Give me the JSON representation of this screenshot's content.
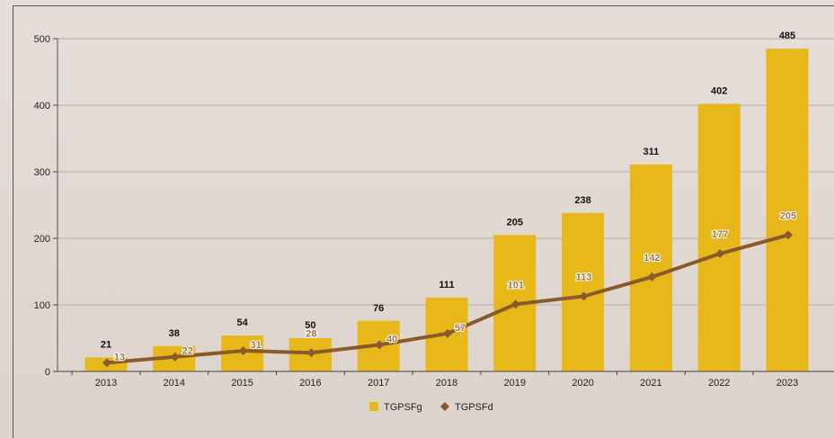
{
  "chart_data": {
    "type": "bar",
    "categories": [
      "2013",
      "2014",
      "2015",
      "2016",
      "2017",
      "2018",
      "2019",
      "2020",
      "2021",
      "2022",
      "2023"
    ],
    "series": [
      {
        "name": "TGPSFg",
        "type": "bar",
        "color": "#e8b71a",
        "values": [
          21,
          38,
          54,
          50,
          76,
          111,
          205,
          238,
          311,
          402,
          485
        ]
      },
      {
        "name": "TGPSFd",
        "type": "line",
        "color": "#8b5a2b",
        "label_color": "#a0744a",
        "values": [
          13,
          22,
          31,
          28,
          40,
          57,
          101,
          113,
          142,
          177,
          205
        ]
      }
    ],
    "ylim": [
      0,
      500
    ],
    "yticks": [
      0,
      100,
      200,
      300,
      400,
      500
    ],
    "grid": true,
    "legend_position": "bottom-center"
  }
}
